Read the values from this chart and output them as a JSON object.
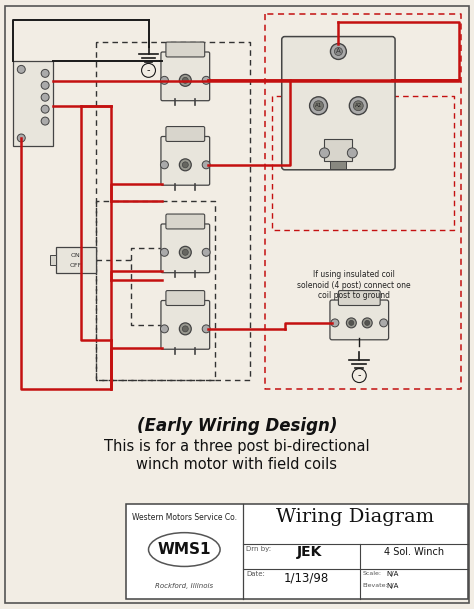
{
  "bg_color": "#f2ede4",
  "wire_red": "#c41010",
  "wire_black": "#1a1a1a",
  "wire_dash_black": "#333333",
  "wire_dash_red": "#c41010",
  "comp_fill": "#d8d5cc",
  "comp_fill_light": "#e8e5dc",
  "comp_edge": "#444444",
  "white": "#ffffff",
  "subtitle_italic": "(Early Wiring Design)",
  "subtitle_line2": "This is for a three post bi-directional",
  "subtitle_line3": "winch motor with field coils",
  "company": "Western Motors Service Co.",
  "logo": "WMS1",
  "city": "Rockford, Illinois",
  "title": "Wiring Diagram",
  "date_label": "Date:",
  "date_val": "1/13/98",
  "scale_label": "Scale:",
  "scale_val": "N/A",
  "elevate_label": "Elevate:",
  "elevate_val": "N/A",
  "drawnby_label": "Drn by:",
  "drawnby_val": "JEK",
  "project": "4 Sol. Winch",
  "note": "If using insulated coil\nsolenoid (4 post) connect one\ncoil post to ground"
}
